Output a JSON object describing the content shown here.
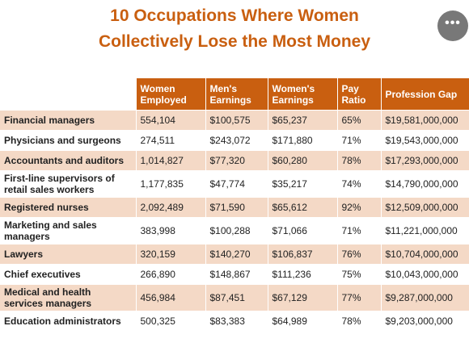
{
  "title": {
    "line1": "10 Occupations Where Women",
    "line2": "Collectively Lose the Most Money"
  },
  "menu": {
    "icon": "more-horizontal-icon",
    "glyph": "•••"
  },
  "colors": {
    "accent": "#c95f10",
    "row_shade": "#f4d9c6",
    "menu_button": "#787878"
  },
  "table": {
    "headers": [
      "",
      "Women Employed",
      "Men's Earnings",
      "Women's Earnings",
      "Pay Ratio",
      "Profession Gap"
    ],
    "rows": [
      [
        "Financial managers",
        "554,104",
        "$100,575",
        "$65,237",
        "65%",
        "$19,581,000,000"
      ],
      [
        "Physicians and surgeons",
        "274,511",
        "$243,072",
        "$171,880",
        "71%",
        "$19,543,000,000"
      ],
      [
        "Accountants and auditors",
        "1,014,827",
        "$77,320",
        "$60,280",
        "78%",
        "$17,293,000,000"
      ],
      [
        "First-line supervisors of retail sales workers",
        "1,177,835",
        "$47,774",
        "$35,217",
        "74%",
        "$14,790,000,000"
      ],
      [
        "Registered nurses",
        "2,092,489",
        "$71,590",
        "$65,612",
        "92%",
        "$12,509,000,000"
      ],
      [
        "Marketing and sales managers",
        "383,998",
        "$100,288",
        "$71,066",
        "71%",
        "$11,221,000,000"
      ],
      [
        "Lawyers",
        "320,159",
        "$140,270",
        "$106,837",
        "76%",
        "$10,704,000,000"
      ],
      [
        "Chief executives",
        "266,890",
        "$148,867",
        "$111,236",
        "75%",
        "$10,043,000,000"
      ],
      [
        "Medical and health services managers",
        "456,984",
        "$87,451",
        "$67,129",
        "77%",
        "$9,287,000,000"
      ],
      [
        "Education administrators",
        "500,325",
        "$83,383",
        "$64,989",
        "78%",
        "$9,203,000,000"
      ]
    ]
  }
}
